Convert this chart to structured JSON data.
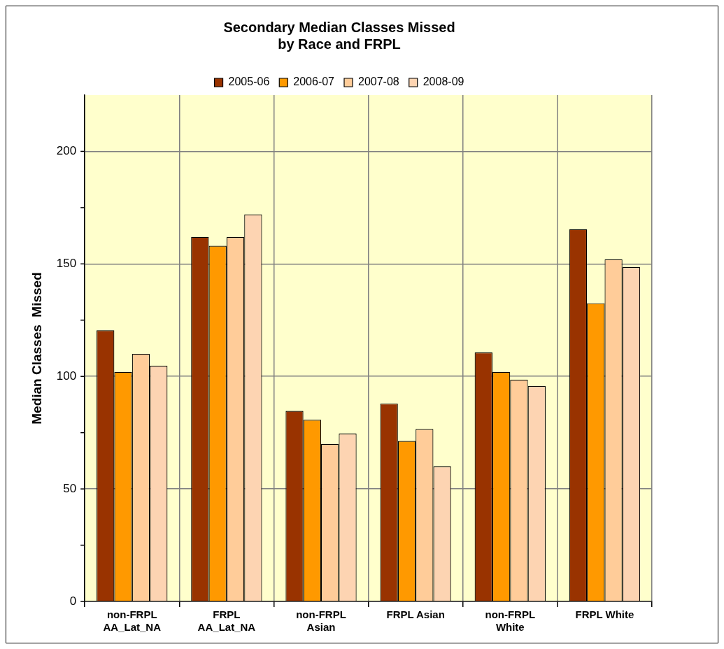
{
  "chart_data": {
    "type": "bar",
    "title": "Secondary Median Classes Missed\nby Race and FRPL",
    "ylabel": "Median Classes  Missed",
    "categories": [
      "non-FRPL\nAA_Lat_NA",
      "FRPL\nAA_Lat_NA",
      "non-FRPL\nAsian",
      "FRPL Asian",
      "non-FRPL\nWhite",
      "FRPL White"
    ],
    "series": [
      {
        "name": "2005-06",
        "color": "#993300",
        "values": [
          120.5,
          162,
          84.7,
          87.9,
          110.6,
          165.4
        ]
      },
      {
        "name": "2006-07",
        "color": "#ff9900",
        "values": [
          102,
          158,
          80.7,
          71.3,
          102,
          132.5
        ]
      },
      {
        "name": "2007-08",
        "color": "#ffcc99",
        "values": [
          110,
          162,
          70,
          76.6,
          98.5,
          152
        ]
      },
      {
        "name": "2008-09",
        "color": "#fdd4b2",
        "values": [
          104.7,
          172,
          74.6,
          60,
          95.8,
          148.6
        ]
      }
    ],
    "ylim": [
      0,
      225
    ],
    "yticks": [
      0,
      {
        "value": 25,
        "label": null
      },
      50,
      {
        "value": 75,
        "label": null
      },
      100,
      {
        "value": 125,
        "label": null
      },
      150,
      {
        "value": 175,
        "label": null
      },
      200
    ],
    "grid": true,
    "legend": "top"
  }
}
